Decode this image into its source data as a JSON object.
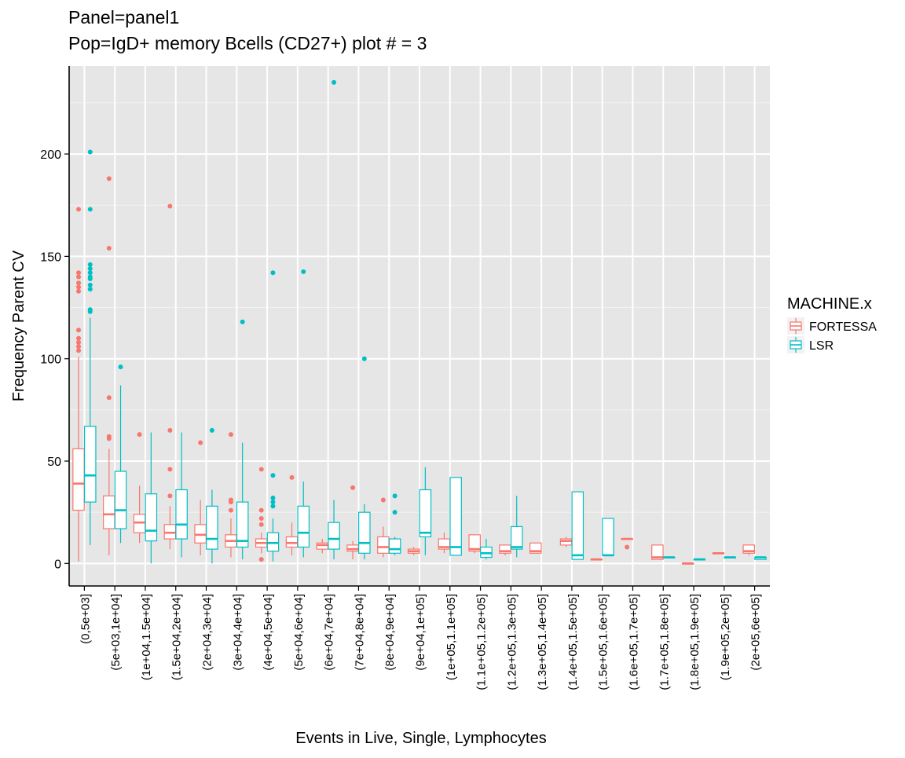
{
  "chart_data": {
    "type": "boxplot",
    "title": "Panel=panel1",
    "subtitle": "Pop=IgD+ memory Bcells (CD27+) plot # = 3",
    "xlabel": "Events in Live, Single, Lymphocytes",
    "ylabel": "Frequency Parent CV",
    "ylim": [
      -11,
      243
    ],
    "yticks": [
      0,
      50,
      100,
      150,
      200
    ],
    "grid": true,
    "legend": {
      "title": "MACHINE.x",
      "placement": "right"
    },
    "categories": [
      "(0,5e+03]",
      "(5e+03,1e+04]",
      "(1e+04,1.5e+04]",
      "(1.5e+04,2e+04]",
      "(2e+04,3e+04]",
      "(3e+04,4e+04]",
      "(4e+04,5e+04]",
      "(5e+04,6e+04]",
      "(6e+04,7e+04]",
      "(7e+04,8e+04]",
      "(8e+04,9e+04]",
      "(9e+04,1e+05]",
      "(1e+05,1.1e+05]",
      "(1.1e+05,1.2e+05]",
      "(1.2e+05,1.3e+05]",
      "(1.3e+05,1.4e+05]",
      "(1.4e+05,1.5e+05]",
      "(1.5e+05,1.6e+05]",
      "(1.6e+05,1.7e+05]",
      "(1.7e+05,1.8e+05]",
      "(1.8e+05,1.9e+05]",
      "(1.9e+05,2e+05]",
      "(2e+05,6e+05]"
    ],
    "series": [
      {
        "name": "FORTESSA",
        "color": "#F8766D",
        "boxes": [
          {
            "i": 0,
            "min": 1,
            "q1": 26,
            "med": 39,
            "q3": 56,
            "max": 101,
            "outliers": [
              173,
              142,
              140,
              137,
              135,
              133,
              114,
              110,
              108,
              106,
              104
            ]
          },
          {
            "i": 1,
            "min": 4,
            "q1": 17,
            "med": 24,
            "q3": 33,
            "max": 56,
            "outliers": [
              188,
              154,
              81,
              62,
              61
            ]
          },
          {
            "i": 2,
            "min": 10,
            "q1": 15,
            "med": 20,
            "q3": 24,
            "max": 38,
            "outliers": [
              63
            ]
          },
          {
            "i": 3,
            "min": 7,
            "q1": 12,
            "med": 15,
            "q3": 19,
            "max": 28,
            "outliers": [
              174.5,
              65,
              46,
              33
            ]
          },
          {
            "i": 4,
            "min": 4,
            "q1": 10,
            "med": 14,
            "q3": 19,
            "max": 31,
            "outliers": [
              59
            ]
          },
          {
            "i": 5,
            "min": 3,
            "q1": 8,
            "med": 11,
            "q3": 14,
            "max": 22,
            "outliers": [
              63,
              31,
              30,
              26
            ]
          },
          {
            "i": 6,
            "min": 5,
            "q1": 8,
            "med": 10,
            "q3": 12,
            "max": 15,
            "outliers": [
              46,
              26,
              22,
              19,
              2
            ]
          },
          {
            "i": 7,
            "min": 4,
            "q1": 8,
            "med": 10,
            "q3": 13,
            "max": 20,
            "outliers": [
              42
            ]
          },
          {
            "i": 8,
            "min": 5,
            "q1": 7,
            "med": 9,
            "q3": 10,
            "max": 12,
            "outliers": []
          },
          {
            "i": 9,
            "min": 2,
            "q1": 6,
            "med": 7,
            "q3": 9,
            "max": 11,
            "outliers": [
              37
            ]
          },
          {
            "i": 10,
            "min": 3,
            "q1": 5,
            "med": 8,
            "q3": 13,
            "max": 18,
            "outliers": [
              31
            ]
          },
          {
            "i": 11,
            "min": 4,
            "q1": 5,
            "med": 6,
            "q3": 7,
            "max": 8,
            "outliers": []
          },
          {
            "i": 12,
            "min": 5,
            "q1": 7,
            "med": 8,
            "q3": 12,
            "max": 15,
            "outliers": []
          },
          {
            "i": 13,
            "min": 5,
            "q1": 6,
            "med": 7,
            "q3": 14,
            "max": 14,
            "outliers": []
          },
          {
            "i": 14,
            "min": 4,
            "q1": 5,
            "med": 6,
            "q3": 9,
            "max": 9,
            "outliers": []
          },
          {
            "i": 15,
            "min": 5,
            "q1": 5,
            "med": 6,
            "q3": 10,
            "max": 10,
            "outliers": []
          },
          {
            "i": 16,
            "min": 8,
            "q1": 9,
            "med": 11,
            "q3": 12,
            "max": 13,
            "outliers": []
          },
          {
            "i": 17,
            "min": 2,
            "q1": 2,
            "med": 2,
            "q3": 2,
            "max": 2,
            "outliers": []
          },
          {
            "i": 18,
            "min": 12,
            "q1": 12,
            "med": 12,
            "q3": 12,
            "max": 12,
            "outliers": [
              8
            ]
          },
          {
            "i": 19,
            "min": 2,
            "q1": 2,
            "med": 3,
            "q3": 9,
            "max": 9,
            "outliers": []
          },
          {
            "i": 20,
            "min": 0,
            "q1": 0,
            "med": 0,
            "q3": 0,
            "max": 0,
            "outliers": []
          },
          {
            "i": 21,
            "min": 5,
            "q1": 5,
            "med": 5,
            "q3": 5,
            "max": 5,
            "outliers": []
          },
          {
            "i": 22,
            "min": 4,
            "q1": 5,
            "med": 6,
            "q3": 9,
            "max": 9,
            "outliers": []
          }
        ]
      },
      {
        "name": "LSR",
        "color": "#00BFC4",
        "boxes": [
          {
            "i": 0,
            "min": 9,
            "q1": 30,
            "med": 43,
            "q3": 67,
            "max": 120,
            "outliers": [
              201,
              173,
              146,
              144,
              142,
              140,
              139,
              136,
              134,
              124,
              123
            ]
          },
          {
            "i": 1,
            "min": 10,
            "q1": 17,
            "med": 26,
            "q3": 45,
            "max": 87,
            "outliers": [
              96
            ]
          },
          {
            "i": 2,
            "min": 0,
            "q1": 11,
            "med": 16,
            "q3": 34,
            "max": 64,
            "outliers": []
          },
          {
            "i": 3,
            "min": 3,
            "q1": 12,
            "med": 19,
            "q3": 36,
            "max": 64,
            "outliers": []
          },
          {
            "i": 4,
            "min": 0,
            "q1": 7,
            "med": 12,
            "q3": 28,
            "max": 36,
            "outliers": [
              65
            ]
          },
          {
            "i": 5,
            "min": 2,
            "q1": 8,
            "med": 11,
            "q3": 30,
            "max": 59,
            "outliers": [
              118
            ]
          },
          {
            "i": 6,
            "min": 1,
            "q1": 6,
            "med": 10,
            "q3": 15,
            "max": 22,
            "outliers": [
              142,
              43,
              32,
              30,
              28
            ]
          },
          {
            "i": 7,
            "min": 3,
            "q1": 8,
            "med": 15,
            "q3": 28,
            "max": 40,
            "outliers": [
              142.5
            ]
          },
          {
            "i": 8,
            "min": 2,
            "q1": 7,
            "med": 12,
            "q3": 20,
            "max": 31,
            "outliers": [
              235
            ]
          },
          {
            "i": 9,
            "min": 2,
            "q1": 5,
            "med": 10,
            "q3": 25,
            "max": 29,
            "outliers": [
              100
            ]
          },
          {
            "i": 10,
            "min": 4,
            "q1": 5,
            "med": 7,
            "q3": 12,
            "max": 13,
            "outliers": [
              33,
              25
            ]
          },
          {
            "i": 11,
            "min": 4,
            "q1": 13,
            "med": 15,
            "q3": 36,
            "max": 47,
            "outliers": []
          },
          {
            "i": 12,
            "min": 4,
            "q1": 4,
            "med": 8,
            "q3": 42,
            "max": 42,
            "outliers": []
          },
          {
            "i": 13,
            "min": 2,
            "q1": 3,
            "med": 5,
            "q3": 8,
            "max": 12,
            "outliers": []
          },
          {
            "i": 14,
            "min": 3,
            "q1": 7,
            "med": 8,
            "q3": 18,
            "max": 33,
            "outliers": []
          },
          {
            "i": 16,
            "min": 2,
            "q1": 2,
            "med": 4,
            "q3": 35,
            "max": 35,
            "outliers": []
          },
          {
            "i": 17,
            "min": 4,
            "q1": 4,
            "med": 4,
            "q3": 22,
            "max": 22,
            "outliers": []
          },
          {
            "i": 19,
            "min": 3,
            "q1": 3,
            "med": 3,
            "q3": 3,
            "max": 3,
            "outliers": []
          },
          {
            "i": 20,
            "min": 2,
            "q1": 2,
            "med": 2,
            "q3": 2,
            "max": 2,
            "outliers": []
          },
          {
            "i": 21,
            "min": 3,
            "q1": 3,
            "med": 3,
            "q3": 3,
            "max": 3,
            "outliers": []
          },
          {
            "i": 22,
            "min": 2,
            "q1": 2,
            "med": 3,
            "q3": 3,
            "max": 3,
            "outliers": []
          }
        ]
      }
    ]
  }
}
